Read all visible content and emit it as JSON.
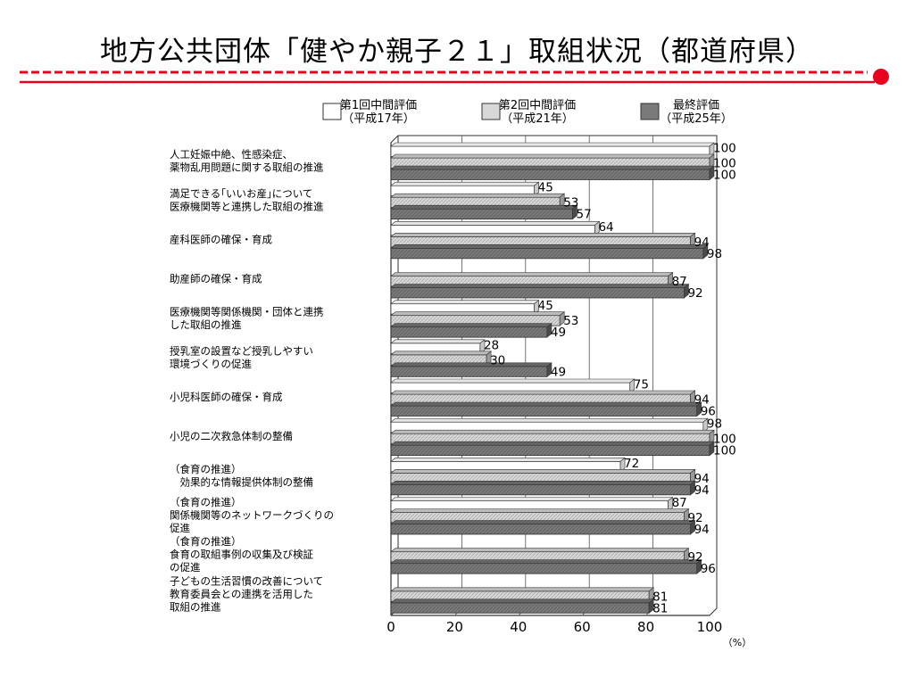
{
  "slide": {
    "title": "地方公共団体「健やか親子２１」取組状況（都道府県）"
  },
  "colors": {
    "accent_red": "#e8001c",
    "series_fill": [
      "#ffffff",
      "#d9d9d9",
      "#7f7f7f"
    ]
  },
  "chart_data": {
    "type": "bar",
    "orientation": "horizontal",
    "title": "",
    "xlabel": "",
    "unit_label": "（%）",
    "xlim": [
      0,
      100
    ],
    "xticks": [
      0,
      20,
      40,
      60,
      80,
      100
    ],
    "grid": true,
    "legend_position": "top",
    "categories": [
      [
        "人工妊娠中絶、性感染症、",
        "薬物乱用問題に関する取組の推進"
      ],
      [
        "満足できる｢いいお産｣について",
        "医療機関等と連携した取組の推進"
      ],
      [
        "産科医師の確保・育成"
      ],
      [
        "助産師の確保・育成"
      ],
      [
        "医療機関等関係機関・団体と連携",
        "した取組の推進"
      ],
      [
        "授乳室の設置など授乳しやすい",
        "環境づくりの促進"
      ],
      [
        "小児科医師の確保・育成"
      ],
      [
        "小児の二次救急体制の整備"
      ],
      [
        "（食育の推進）",
        "　効果的な情報提供体制の整備"
      ],
      [
        "（食育の推進）",
        "関係機関等のネットワークづくりの",
        "促進"
      ],
      [
        "（食育の推進）",
        "食育の取組事例の収集及び検証",
        "の促進"
      ],
      [
        "子どもの生活習慣の改善について",
        "教育委員会との連携を活用した",
        "取組の推進"
      ]
    ],
    "series": [
      {
        "name": "第1回中間評価",
        "sub": "（平成17年）",
        "values": [
          100,
          45,
          64,
          null,
          45,
          28,
          75,
          98,
          72,
          87,
          null,
          null
        ]
      },
      {
        "name": "第2回中間評価",
        "sub": "（平成21年）",
        "values": [
          100,
          53,
          94,
          87,
          53,
          30,
          94,
          100,
          94,
          92,
          92,
          81
        ]
      },
      {
        "name": "最終評価",
        "sub": "（平成25年）",
        "values": [
          100,
          57,
          98,
          92,
          49,
          49,
          96,
          100,
          94,
          94,
          96,
          81
        ]
      }
    ]
  }
}
